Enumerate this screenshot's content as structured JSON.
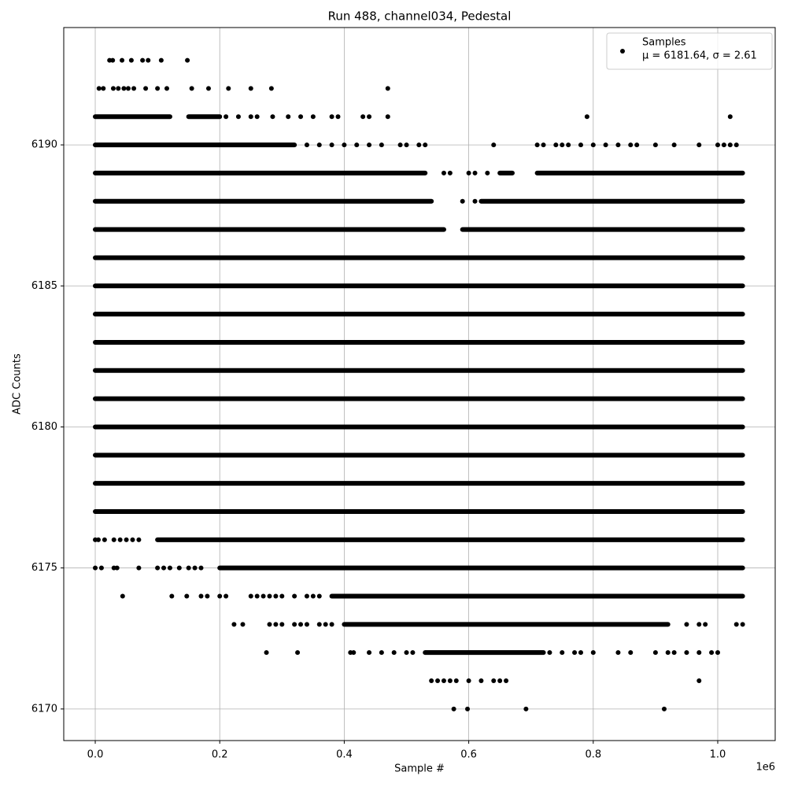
{
  "chart_data": {
    "type": "scatter",
    "title": "Run 488, channel034, Pedestal",
    "x_label": "Sample #",
    "y_label": "ADC Counts",
    "x_offset_label": "1e6",
    "xlim": [
      -0.0506,
      1.0923
    ],
    "ylim": [
      6168.88,
      6194.16
    ],
    "xticks": [
      {
        "value": 0,
        "label": "0.0"
      },
      {
        "value": 0.2,
        "label": "0.2"
      },
      {
        "value": 0.4,
        "label": "0.4"
      },
      {
        "value": 0.6,
        "label": "0.6"
      },
      {
        "value": 0.8,
        "label": "0.8"
      },
      {
        "value": 1,
        "label": "1.0"
      }
    ],
    "yticks": [
      6170,
      6175,
      6180,
      6185,
      6190
    ],
    "grid": true,
    "legend_position": "upper right",
    "series": [
      {
        "name": "Samples",
        "stat": "μ = 6181.64, σ = 2.61",
        "color": "#000000"
      }
    ],
    "runs": [
      {
        "y": 6191,
        "x": [
          0,
          0.12
        ]
      },
      {
        "y": 6191,
        "x": [
          0.15,
          0.2
        ]
      },
      {
        "y": 6190,
        "x": [
          0,
          0.32
        ]
      },
      {
        "y": 6189,
        "x": [
          0,
          0.53
        ]
      },
      {
        "y": 6189,
        "x": [
          0.65,
          0.67
        ]
      },
      {
        "y": 6189,
        "x": [
          0.71,
          1.04
        ]
      },
      {
        "y": 6188,
        "x": [
          0,
          0.54
        ]
      },
      {
        "y": 6188,
        "x": [
          0.62,
          1.04
        ]
      },
      {
        "y": 6187,
        "x": [
          0,
          0.56
        ]
      },
      {
        "y": 6187,
        "x": [
          0.59,
          1.04
        ]
      },
      {
        "y": 6186,
        "x": [
          0,
          1.04
        ]
      },
      {
        "y": 6185,
        "x": [
          0,
          1.04
        ]
      },
      {
        "y": 6184,
        "x": [
          0,
          1.04
        ]
      },
      {
        "y": 6183,
        "x": [
          0,
          1.04
        ]
      },
      {
        "y": 6182,
        "x": [
          0,
          1.04
        ]
      },
      {
        "y": 6181,
        "x": [
          0,
          1.04
        ]
      },
      {
        "y": 6180,
        "x": [
          0,
          1.04
        ]
      },
      {
        "y": 6179,
        "x": [
          0,
          1.04
        ]
      },
      {
        "y": 6178,
        "x": [
          0,
          1.04
        ]
      },
      {
        "y": 6177,
        "x": [
          0,
          1.04
        ]
      },
      {
        "y": 6176,
        "x": [
          0.1,
          1.04
        ]
      },
      {
        "y": 6175,
        "x": [
          0.2,
          1.04
        ]
      },
      {
        "y": 6174,
        "x": [
          0.38,
          1.04
        ]
      },
      {
        "y": 6173,
        "x": [
          0.4,
          0.92
        ]
      },
      {
        "y": 6172,
        "x": [
          0.53,
          0.72
        ]
      }
    ],
    "points": [
      {
        "y": 6193,
        "x": [
          0.023,
          0.028,
          0.043,
          0.058,
          0.076,
          0.085,
          0.106,
          0.148
        ]
      },
      {
        "y": 6192,
        "x": [
          0.006,
          0.013,
          0.029,
          0.037,
          0.046,
          0.053,
          0.062,
          0.081,
          0.1,
          0.115,
          0.155,
          0.182,
          0.214,
          0.25,
          0.283,
          0.47
        ]
      },
      {
        "y": 6191,
        "x": [
          0.21,
          0.23,
          0.25,
          0.26,
          0.285,
          0.31,
          0.33,
          0.35,
          0.38,
          0.39,
          0.43,
          0.44,
          0.47,
          0.79,
          1.02
        ]
      },
      {
        "y": 6190,
        "x": [
          0.34,
          0.36,
          0.38,
          0.4,
          0.42,
          0.44,
          0.46,
          0.49,
          0.5,
          0.52,
          0.53,
          0.64,
          0.71,
          0.72,
          0.74,
          0.75,
          0.76,
          0.78,
          0.8,
          0.82,
          0.84,
          0.86,
          0.87,
          0.9,
          0.93,
          0.97,
          1,
          1.01,
          1.02,
          1.03
        ]
      },
      {
        "y": 6189,
        "x": [
          0.56,
          0.57,
          0.6,
          0.61,
          0.63
        ]
      },
      {
        "y": 6188,
        "x": [
          0.59,
          0.61
        ]
      },
      {
        "y": 6176,
        "x": [
          0,
          0.005,
          0.015,
          0.03,
          0.04,
          0.05,
          0.06,
          0.07
        ]
      },
      {
        "y": 6175,
        "x": [
          0,
          0.01,
          0.03,
          0.035,
          0.07,
          0.1,
          0.11,
          0.12,
          0.135,
          0.15,
          0.16,
          0.17
        ]
      },
      {
        "y": 6174,
        "x": [
          0.044,
          0.123,
          0.147,
          0.17,
          0.18,
          0.2,
          0.21,
          0.25,
          0.26,
          0.27,
          0.28,
          0.29,
          0.3,
          0.32,
          0.34,
          0.35,
          0.36
        ]
      },
      {
        "y": 6173,
        "x": [
          0.223,
          0.237,
          0.28,
          0.29,
          0.3,
          0.32,
          0.33,
          0.34,
          0.36,
          0.37,
          0.38,
          0.95,
          0.97,
          0.98,
          1.03,
          1.04
        ]
      },
      {
        "y": 6172,
        "x": [
          0.275,
          0.325,
          0.41,
          0.415,
          0.44,
          0.46,
          0.48,
          0.5,
          0.51,
          0.73,
          0.75,
          0.77,
          0.78,
          0.8,
          0.84,
          0.86,
          0.9,
          0.92,
          0.93,
          0.95,
          0.97,
          0.99,
          1
        ]
      },
      {
        "y": 6171,
        "x": [
          0.54,
          0.55,
          0.56,
          0.57,
          0.58,
          0.6,
          0.62,
          0.64,
          0.65,
          0.66,
          0.97
        ]
      },
      {
        "y": 6170,
        "x": [
          0.576,
          0.598,
          0.692,
          0.914
        ]
      }
    ]
  }
}
